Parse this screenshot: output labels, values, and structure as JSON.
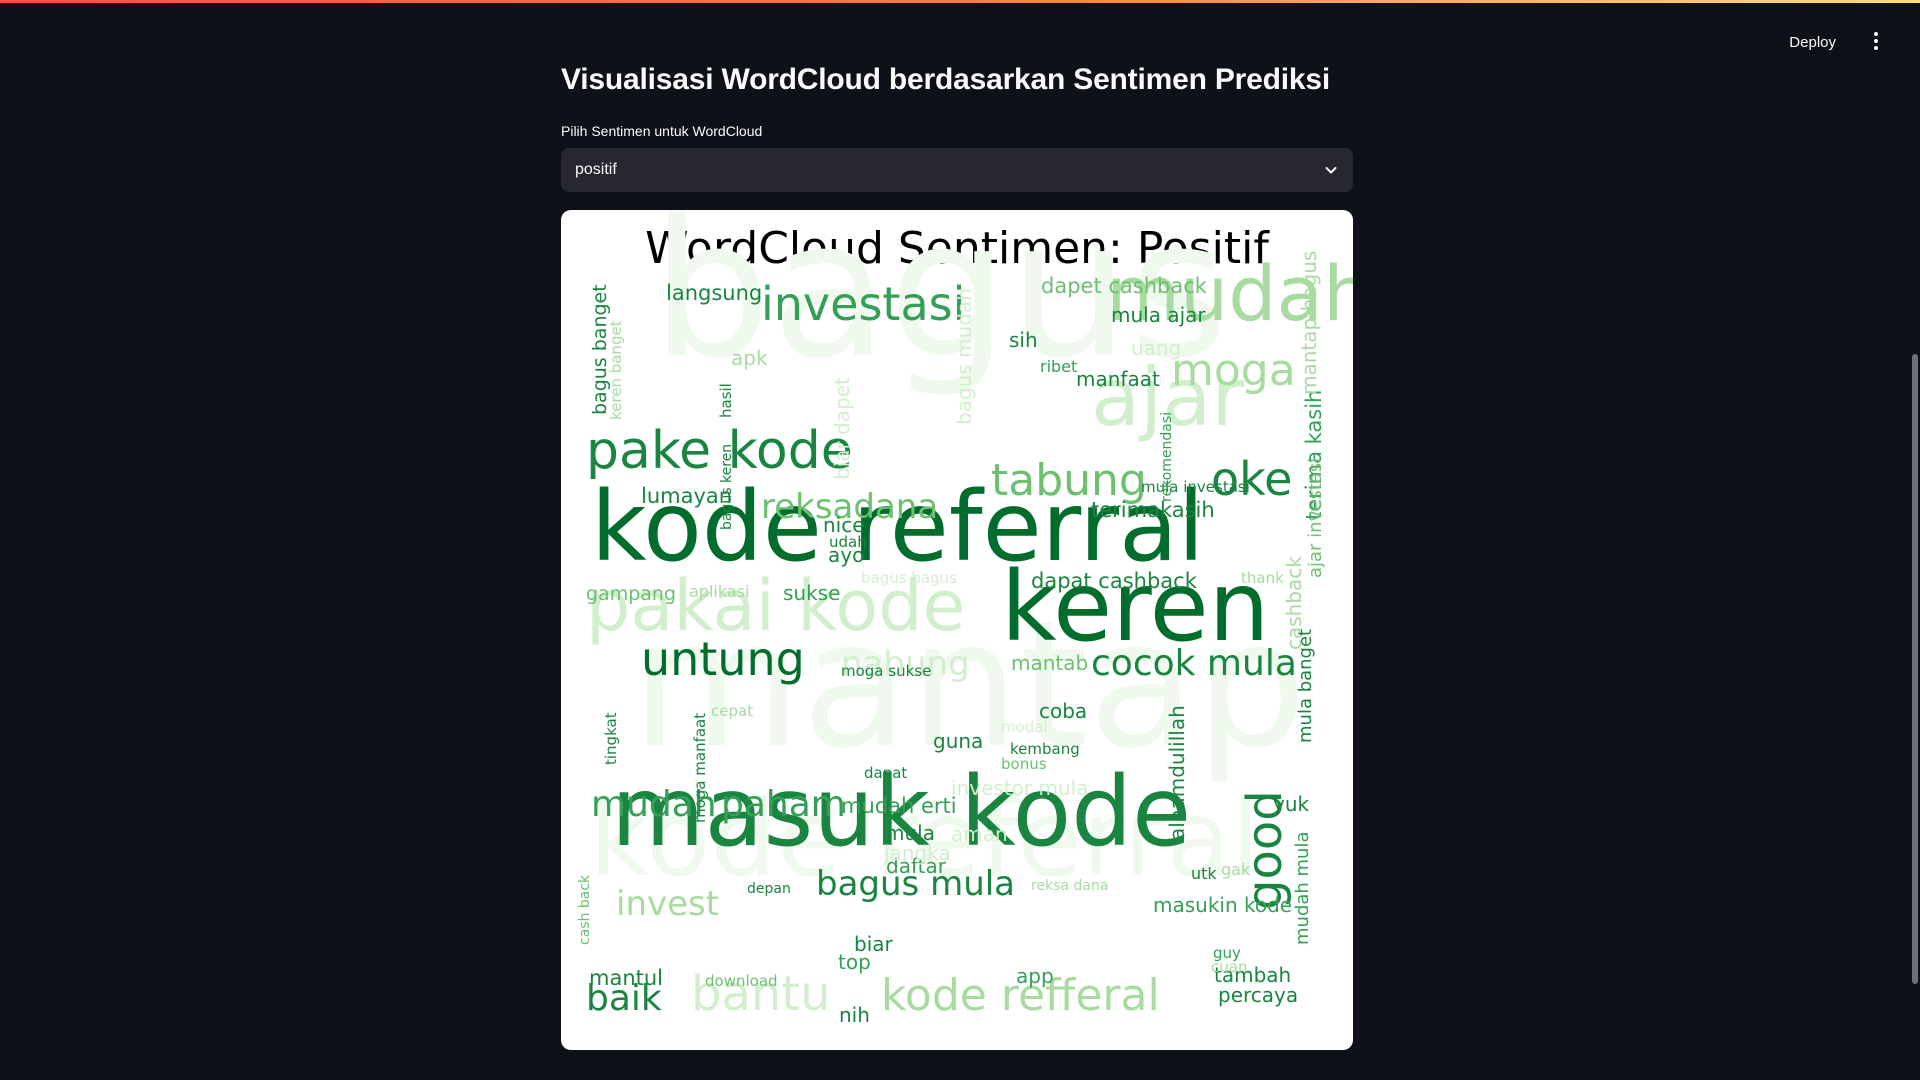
{
  "header": {
    "deploy_label": "Deploy",
    "menu_icon": "kebab-menu-icon"
  },
  "main": {
    "title": "Visualisasi WordCloud berdasarkan Sentimen Prediksi",
    "select_label": "Pilih Sentimen untuk WordCloud",
    "select_value": "positif",
    "select_icon": "chevron-down-icon"
  },
  "colors": {
    "background": "#0e1117",
    "select_bg": "#262730",
    "card_bg": "#ffffff",
    "green_scale": [
      "#f0f9ee",
      "#d2efcd",
      "#a7dba0",
      "#6cc070",
      "#34a055",
      "#1a8441",
      "#006d2c"
    ]
  },
  "chart_data": {
    "type": "wordcloud",
    "title": "WordCloud Sentimen: Positif",
    "colormap": "Greens",
    "words": [
      {
        "text": "bagus",
        "level": 0
      },
      {
        "text": "mantap",
        "level": 0
      },
      {
        "text": "kode referral",
        "level": 0
      },
      {
        "text": "mudah",
        "level": 2
      },
      {
        "text": "ajar",
        "level": 1
      },
      {
        "text": "kode referral",
        "level": 6
      },
      {
        "text": "keren",
        "level": 6
      },
      {
        "text": "masuk kode",
        "level": 5
      },
      {
        "text": "pakai kode",
        "level": 1
      },
      {
        "text": "pake kode",
        "level": 5
      },
      {
        "text": "investasi",
        "level": 4
      },
      {
        "text": "untung",
        "level": 6
      },
      {
        "text": "tabung",
        "level": 3
      },
      {
        "text": "oke",
        "level": 5
      },
      {
        "text": "moga",
        "level": 2
      },
      {
        "text": "reksadana",
        "level": 3
      },
      {
        "text": "nabung",
        "level": 1
      },
      {
        "text": "cocok mula",
        "level": 5
      },
      {
        "text": "paham",
        "level": 4
      },
      {
        "text": "mudah",
        "level": 4
      },
      {
        "text": "bagus mula",
        "level": 5
      },
      {
        "text": "kode refferal",
        "level": 2
      },
      {
        "text": "bantu",
        "level": 1
      },
      {
        "text": "baik",
        "level": 5
      },
      {
        "text": "invest",
        "level": 2
      },
      {
        "text": "good",
        "level": 5
      },
      {
        "text": "dapat cashback",
        "level": 5
      },
      {
        "text": "dapet cashback",
        "level": 3
      },
      {
        "text": "langsung",
        "level": 5
      },
      {
        "text": "mula ajar",
        "level": 5
      },
      {
        "text": "manfaat",
        "level": 5
      },
      {
        "text": "terimakasih",
        "level": 5
      },
      {
        "text": "lumayan",
        "level": 5
      },
      {
        "text": "mantab",
        "level": 3
      },
      {
        "text": "mudah erti",
        "level": 4
      },
      {
        "text": "alhamdulillah",
        "level": 5
      },
      {
        "text": "terima kasih",
        "level": 4
      },
      {
        "text": "bagus banget",
        "level": 5
      },
      {
        "text": "masukin kode",
        "level": 4
      },
      {
        "text": "percaya",
        "level": 5
      },
      {
        "text": "tambah",
        "level": 5
      },
      {
        "text": "mantul",
        "level": 5
      },
      {
        "text": "nice",
        "level": 5
      },
      {
        "text": "ayo",
        "level": 5
      },
      {
        "text": "sih",
        "level": 5
      },
      {
        "text": "coba",
        "level": 5
      },
      {
        "text": "guna",
        "level": 5
      },
      {
        "text": "yuk",
        "level": 5
      },
      {
        "text": "biar",
        "level": 5
      },
      {
        "text": "app",
        "level": 4
      },
      {
        "text": "top",
        "level": 4
      },
      {
        "text": "nih",
        "level": 5
      },
      {
        "text": "daftar",
        "level": 4
      },
      {
        "text": "mula",
        "level": 5
      },
      {
        "text": "sukse",
        "level": 4
      },
      {
        "text": "gampang",
        "level": 3
      },
      {
        "text": "aplikasi",
        "level": 2
      },
      {
        "text": "ribet",
        "level": 4
      },
      {
        "text": "apk",
        "level": 2
      },
      {
        "text": "uang",
        "level": 1
      },
      {
        "text": "udah",
        "level": 5
      },
      {
        "text": "moga sukse",
        "level": 5
      },
      {
        "text": "kembang",
        "level": 5
      },
      {
        "text": "bonus",
        "level": 3
      },
      {
        "text": "modal",
        "level": 1
      },
      {
        "text": "dapat",
        "level": 5
      },
      {
        "text": "investor mula",
        "level": 1
      },
      {
        "text": "aman",
        "level": 1
      },
      {
        "text": "jangka",
        "level": 1
      },
      {
        "text": "depan",
        "level": 5
      },
      {
        "text": "utk",
        "level": 5
      },
      {
        "text": "gak",
        "level": 2
      },
      {
        "text": "guy",
        "level": 4
      },
      {
        "text": "cuan",
        "level": 2
      },
      {
        "text": "download",
        "level": 3
      },
      {
        "text": "cepat",
        "level": 2
      },
      {
        "text": "thank",
        "level": 2
      },
      {
        "text": "bagus bagus",
        "level": 1
      },
      {
        "text": "mula investasi",
        "level": 5
      },
      {
        "text": "mantap bagus",
        "level": 2
      },
      {
        "text": "bagus mudah",
        "level": 1
      },
      {
        "text": "cashback",
        "level": 2
      },
      {
        "text": "ajar investasi",
        "level": 3
      },
      {
        "text": "mula banget",
        "level": 5
      },
      {
        "text": "mudah mula",
        "level": 4
      },
      {
        "text": "rekomendasi",
        "level": 4
      },
      {
        "text": "tingkat",
        "level": 5
      },
      {
        "text": "moga manfaat",
        "level": 5
      },
      {
        "text": "cash back",
        "level": 3
      },
      {
        "text": "keren banget",
        "level": 2
      },
      {
        "text": "bagus keren",
        "level": 5
      },
      {
        "text": "hasil",
        "level": 5
      },
      {
        "text": "biar dapet",
        "level": 1
      },
      {
        "text": "reksa dana",
        "level": 2
      }
    ]
  }
}
